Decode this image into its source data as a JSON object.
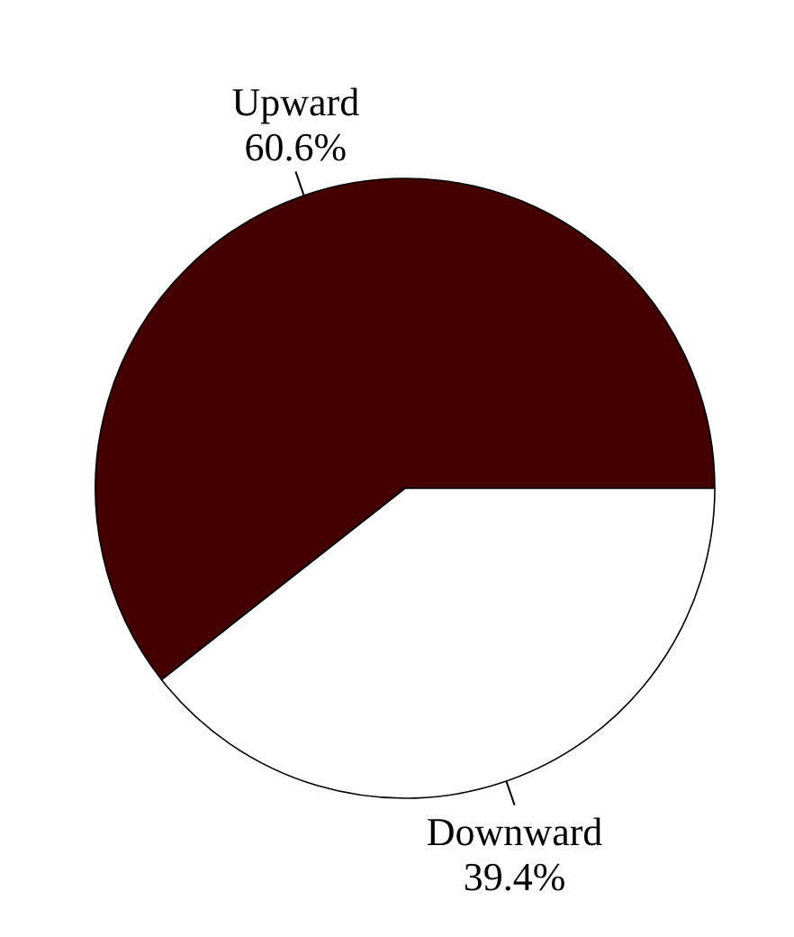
{
  "chart_data": {
    "type": "pie",
    "categories": [
      "Upward",
      "Downward"
    ],
    "values": [
      60.6,
      39.4
    ],
    "colors": [
      "#440000",
      "#ffffff"
    ],
    "value_labels": [
      "60.6%",
      "39.4%"
    ]
  }
}
